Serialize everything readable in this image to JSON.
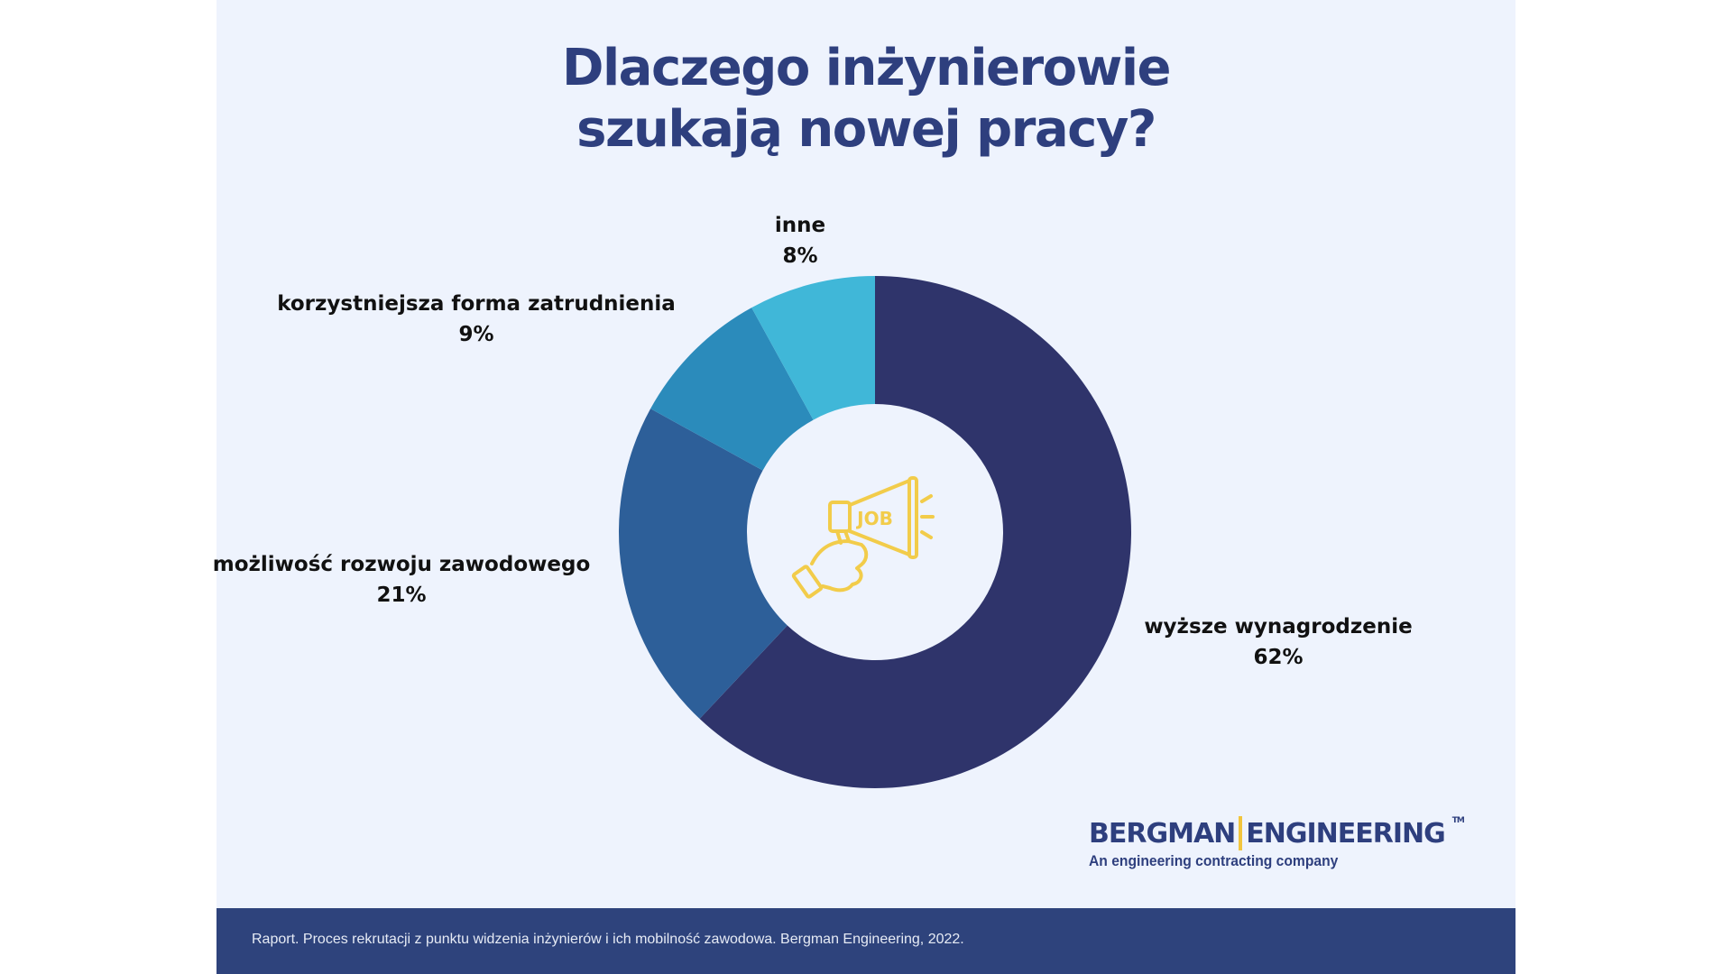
{
  "title": {
    "line1": "Dlaczego inżynierowie",
    "line2": "szukają nowej pracy?"
  },
  "chart_data": {
    "type": "pie",
    "variant": "donut",
    "title": "Dlaczego inżynierowie szukają nowej pracy?",
    "categories": [
      "wyższe wynagrodzenie",
      "możliwość rozwoju zawodowego",
      "korzystniejsza forma zatrudnienia",
      "inne"
    ],
    "values": [
      62,
      21,
      9,
      8
    ],
    "value_labels": [
      "62%",
      "21%",
      "9%",
      "8%"
    ],
    "colors": [
      "#2f346b",
      "#2d5f99",
      "#2b8bbb",
      "#40b7d8"
    ],
    "center_icon": "megaphone-job-icon",
    "center_icon_text": "JOB",
    "start": "top",
    "direction": "clockwise"
  },
  "logo": {
    "name_left": "BERGMAN",
    "name_right": "ENGINEERING",
    "tm": "TM",
    "tagline": "An engineering contracting company"
  },
  "footer": {
    "source": "Raport. Proces rekrutacji z punktu widzenia inżynierów i ich mobilność zawodowa. Bergman Engineering, 2022."
  }
}
